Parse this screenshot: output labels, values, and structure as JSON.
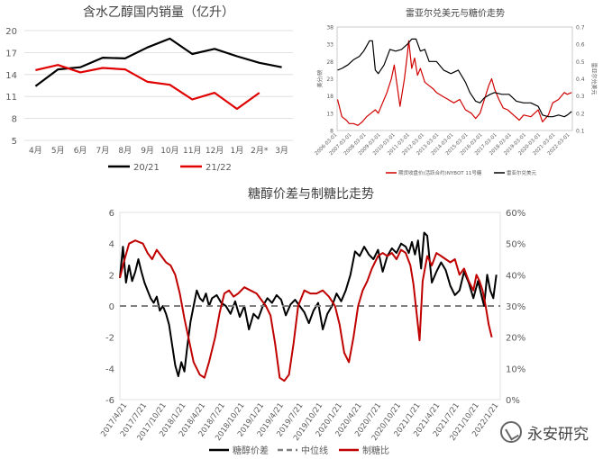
{
  "chart_data": [
    {
      "type": "line",
      "title": "含水乙醇国内销量（亿升）",
      "categories": [
        "4月",
        "5月",
        "6月",
        "7月",
        "8月",
        "9月",
        "10月",
        "11月",
        "12月",
        "1月",
        "2月*",
        "3月"
      ],
      "ylim": [
        5,
        20
      ],
      "yticks": [
        5,
        8,
        11,
        14,
        17,
        20
      ],
      "legend_position": "bottom",
      "grid": true,
      "series": [
        {
          "name": "20/21",
          "color": "#000000",
          "values": [
            12.4,
            14.7,
            15.0,
            16.3,
            16.2,
            17.7,
            18.9,
            16.8,
            17.5,
            16.5,
            15.6,
            15.0
          ]
        },
        {
          "name": "21/22",
          "color": "#e00000",
          "values": [
            14.6,
            15.3,
            14.3,
            14.9,
            14.7,
            13.0,
            12.6,
            10.6,
            11.5,
            9.3,
            11.5,
            null
          ]
        }
      ]
    },
    {
      "type": "line",
      "title": "雷亚尔兑美元与糖价走势",
      "ylabel": "美分/磅",
      "y2label": "雷亚尔兑美元",
      "ylim": [
        8,
        38
      ],
      "yticks": [
        8,
        13,
        18,
        23,
        28,
        33,
        38
      ],
      "y2lim": [
        0.1,
        0.7
      ],
      "y2ticks": [
        0.1,
        0.2,
        0.3,
        0.4,
        0.5,
        0.6,
        0.7
      ],
      "xticks": [
        "2006-03-01",
        "2007-03-01",
        "2008-03-01",
        "2009-03-01",
        "2010-03-01",
        "2011-03-01",
        "2012-03-01",
        "2013-03-01",
        "2014-03-01",
        "2015-03-01",
        "2016-03-01",
        "2017-03-01",
        "2018-03-01",
        "2019-03-01",
        "2020-03-01",
        "2021-03-01",
        "2022-03-01"
      ],
      "legend_position": "bottom",
      "series": [
        {
          "name": "期货收盘价(活跃合约)NYBOT 11号糖",
          "color": "#d00000",
          "axis": "left",
          "x": [
            2006.2,
            2006.5,
            2006.8,
            2007.0,
            2007.3,
            2007.6,
            2007.9,
            2008.2,
            2008.5,
            2008.8,
            2009.0,
            2009.3,
            2009.6,
            2009.9,
            2010.1,
            2010.3,
            2010.5,
            2010.8,
            2011.0,
            2011.1,
            2011.3,
            2011.5,
            2011.7,
            2011.9,
            2012.2,
            2012.5,
            2012.8,
            2013.0,
            2013.4,
            2013.8,
            2014.2,
            2014.6,
            2015.0,
            2015.4,
            2015.7,
            2016.0,
            2016.3,
            2016.6,
            2016.8,
            2017.0,
            2017.3,
            2017.6,
            2017.9,
            2018.3,
            2018.7,
            2019.0,
            2019.5,
            2020.0,
            2020.3,
            2020.7,
            2021.0,
            2021.4,
            2021.8,
            2022.0,
            2022.3
          ],
          "values": [
            17,
            12,
            11,
            10,
            10,
            9.5,
            10.5,
            12,
            13,
            14,
            13,
            16,
            19,
            23,
            27,
            21,
            15,
            23,
            30,
            34,
            26,
            29,
            24,
            26,
            22,
            21,
            20,
            19,
            18,
            17,
            16,
            17,
            14,
            13,
            11.5,
            13,
            17,
            21,
            23,
            20,
            17,
            14.5,
            14,
            12.5,
            11,
            12.5,
            12,
            14,
            10.5,
            12.5,
            16,
            17,
            19,
            18.5,
            19
          ]
        },
        {
          "name": "雷亚尔兑美元",
          "color": "#000000",
          "axis": "right",
          "x": [
            2006.2,
            2006.5,
            2006.9,
            2007.3,
            2007.7,
            2008.0,
            2008.4,
            2008.6,
            2008.8,
            2009.0,
            2009.4,
            2009.8,
            2010.2,
            2010.6,
            2011.0,
            2011.3,
            2011.6,
            2011.9,
            2012.2,
            2012.5,
            2013.0,
            2013.5,
            2014.0,
            2014.5,
            2015.0,
            2015.3,
            2015.7,
            2016.0,
            2016.3,
            2016.7,
            2017.0,
            2017.5,
            2018.0,
            2018.5,
            2019.0,
            2019.5,
            2020.0,
            2020.3,
            2020.7,
            2021.0,
            2021.4,
            2021.8,
            2022.0,
            2022.3
          ],
          "values": [
            0.45,
            0.46,
            0.48,
            0.51,
            0.53,
            0.56,
            0.62,
            0.62,
            0.45,
            0.43,
            0.48,
            0.57,
            0.56,
            0.57,
            0.6,
            0.63,
            0.63,
            0.56,
            0.57,
            0.5,
            0.5,
            0.45,
            0.43,
            0.45,
            0.38,
            0.32,
            0.27,
            0.26,
            0.29,
            0.31,
            0.32,
            0.31,
            0.31,
            0.27,
            0.26,
            0.26,
            0.24,
            0.19,
            0.18,
            0.18,
            0.19,
            0.18,
            0.19,
            0.21
          ]
        }
      ]
    },
    {
      "type": "line",
      "title": "糖醇价差与制糖比走势",
      "ylim": [
        -6,
        6
      ],
      "yticks": [
        -6,
        -4,
        -2,
        0,
        2,
        4,
        6
      ],
      "y2lim": [
        0,
        60
      ],
      "y2ticks": [
        "0%",
        "10%",
        "20%",
        "30%",
        "40%",
        "50%",
        "60%"
      ],
      "xticks": [
        "2017/4/21",
        "2017/7/21",
        "2017/10/21",
        "2018/1/21",
        "2018/4/21",
        "2018/7/21",
        "2018/10/21",
        "2019/1/21",
        "2019/4/21",
        "2019/7/21",
        "2019/10/21",
        "2020/1/21",
        "2020/4/21",
        "2020/7/21",
        "2020/10/21",
        "2021/1/21",
        "2021/4/21",
        "2021/7/21",
        "2021/10/21",
        "2022/1/21"
      ],
      "legend_position": "bottom",
      "series": [
        {
          "name": "糖醇价差",
          "color": "#000000",
          "axis": "left",
          "x": [
            2017.3,
            2017.34,
            2017.38,
            2017.42,
            2017.46,
            2017.5,
            2017.54,
            2017.58,
            2017.62,
            2017.66,
            2017.7,
            2017.74,
            2017.78,
            2017.82,
            2017.86,
            2017.9,
            2017.94,
            2017.98,
            2018.02,
            2018.06,
            2018.1,
            2018.14,
            2018.18,
            2018.22,
            2018.26,
            2018.3,
            2018.34,
            2018.38,
            2018.42,
            2018.46,
            2018.5,
            2018.56,
            2018.62,
            2018.68,
            2018.74,
            2018.8,
            2018.86,
            2018.92,
            2018.98,
            2019.04,
            2019.1,
            2019.16,
            2019.22,
            2019.28,
            2019.34,
            2019.4,
            2019.46,
            2019.52,
            2019.58,
            2019.64,
            2019.7,
            2019.76,
            2019.82,
            2019.88,
            2019.94,
            2020.0,
            2020.06,
            2020.12,
            2020.18,
            2020.24,
            2020.3,
            2020.36,
            2020.42,
            2020.48,
            2020.54,
            2020.6,
            2020.66,
            2020.72,
            2020.78,
            2020.84,
            2020.9,
            2020.96,
            2021.02,
            2021.06,
            2021.1,
            2021.14,
            2021.18,
            2021.22,
            2021.26,
            2021.3,
            2021.36,
            2021.42,
            2021.48,
            2021.54,
            2021.6,
            2021.66,
            2021.72,
            2021.78,
            2021.84,
            2021.9,
            2021.96,
            2022.0,
            2022.04,
            2022.08,
            2022.12,
            2022.16,
            2022.2
          ],
          "values": [
            1.8,
            3.8,
            1.5,
            2.6,
            1.6,
            2.2,
            3.0,
            2.2,
            1.5,
            1.0,
            0.5,
            0.2,
            0.6,
            -0.3,
            0.0,
            -0.5,
            -1.2,
            -2.5,
            -3.8,
            -4.5,
            -3.6,
            -4.2,
            -2.5,
            -1.0,
            0.0,
            1.0,
            0.5,
            0.3,
            0.8,
            0.0,
            0.5,
            0.7,
            0.2,
            0.0,
            -0.5,
            0.3,
            -0.7,
            0.0,
            -1.5,
            -0.5,
            -0.8,
            0.0,
            0.5,
            0.2,
            0.7,
            0.4,
            -0.6,
            0.1,
            0.4,
            0.0,
            -0.4,
            -1.1,
            -0.3,
            0.2,
            -1.5,
            -0.5,
            0.0,
            0.8,
            0.3,
            1.0,
            2.0,
            3.5,
            3.2,
            3.8,
            3.3,
            3.0,
            3.6,
            2.2,
            3.2,
            3.7,
            3.4,
            4.0,
            3.8,
            3.4,
            4.1,
            3.3,
            4.2,
            2.4,
            4.7,
            4.5,
            1.5,
            2.2,
            2.8,
            2.3,
            1.3,
            0.7,
            1.0,
            2.2,
            1.5,
            0.5,
            1.6,
            0.8,
            0.0,
            2.0,
            1.0,
            0.5,
            2.0
          ]
        },
        {
          "name": "中位线",
          "color": "#7f7f7f",
          "axis": "left",
          "style": "dashed",
          "x": [
            2017.3,
            2022.25
          ],
          "values": [
            0,
            0
          ]
        },
        {
          "name": "制糖比",
          "color": "#c00000",
          "axis": "right",
          "x": [
            2017.3,
            2017.35,
            2017.42,
            2017.5,
            2017.6,
            2017.66,
            2017.72,
            2017.78,
            2017.84,
            2017.9,
            2017.96,
            2018.02,
            2018.08,
            2018.14,
            2018.2,
            2018.26,
            2018.34,
            2018.4,
            2018.46,
            2018.54,
            2018.6,
            2018.66,
            2018.72,
            2018.78,
            2018.84,
            2018.92,
            2019.0,
            2019.08,
            2019.14,
            2019.2,
            2019.26,
            2019.32,
            2019.38,
            2019.44,
            2019.5,
            2019.56,
            2019.62,
            2019.7,
            2019.78,
            2019.86,
            2019.94,
            2020.02,
            2020.1,
            2020.16,
            2020.22,
            2020.28,
            2020.34,
            2020.4,
            2020.46,
            2020.52,
            2020.58,
            2020.66,
            2020.72,
            2020.78,
            2020.84,
            2020.9,
            2020.96,
            2021.02,
            2021.08,
            2021.12,
            2021.16,
            2021.2,
            2021.24,
            2021.3,
            2021.36,
            2021.42,
            2021.48,
            2021.54,
            2021.6,
            2021.66,
            2021.72,
            2021.78,
            2021.84,
            2021.9,
            2021.94,
            2021.98,
            2022.02,
            2022.06,
            2022.1,
            2022.14
          ],
          "values": [
            39,
            44,
            50,
            51,
            50,
            47,
            45,
            48,
            46,
            44,
            43,
            40,
            34,
            26,
            19,
            12,
            8,
            7,
            12,
            20,
            28,
            34,
            35,
            33,
            34,
            36,
            35,
            34,
            32,
            30,
            27,
            18,
            7,
            6,
            8,
            18,
            30,
            35,
            34,
            34,
            35,
            33,
            30,
            24,
            15,
            12,
            20,
            30,
            35,
            38,
            42,
            46,
            47,
            46,
            47,
            45,
            48,
            47,
            43,
            37,
            28,
            19,
            38,
            46,
            43,
            47,
            46,
            45,
            44,
            45,
            40,
            42,
            38,
            35,
            40,
            38,
            35,
            30,
            24,
            20
          ]
        }
      ]
    }
  ],
  "watermark": "永安研究"
}
